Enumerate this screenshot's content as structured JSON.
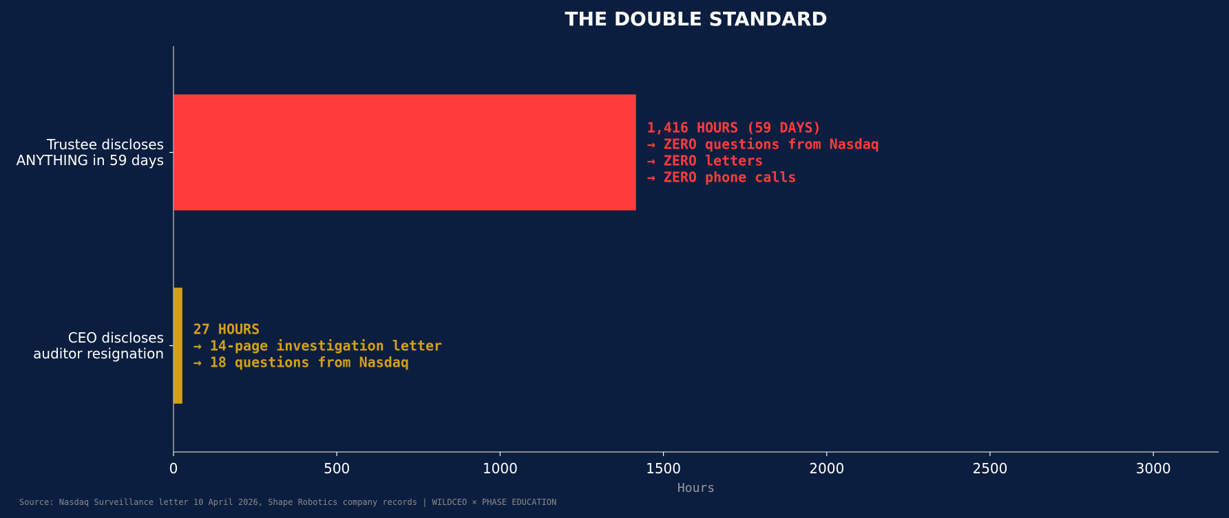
{
  "chart_data": {
    "type": "bar",
    "orientation": "horizontal",
    "title": "THE DOUBLE STANDARD",
    "xlabel": "Hours",
    "ylabel": "",
    "xlim": [
      0,
      3200
    ],
    "xticks": [
      0,
      500,
      1000,
      1500,
      2000,
      2500,
      3000
    ],
    "grid": false,
    "categories": [
      [
        "Trustee discloses",
        "ANYTHING in 59 days"
      ],
      [
        "CEO discloses",
        "auditor resignation"
      ]
    ],
    "values": [
      1416,
      27
    ],
    "colors": [
      "#ff3b3b",
      "#d4a017"
    ],
    "annotations": [
      [
        "1,416 HOURS (59 DAYS)",
        "→ ZERO questions from Nasdaq",
        "→ ZERO letters",
        "→ ZERO phone calls"
      ],
      [
        "27 HOURS",
        "→ 14-page investigation letter",
        "→ 18 questions from Nasdaq"
      ]
    ],
    "source": "Source: Nasdaq Surveillance letter 10 April 2026, Shape Robotics company records | WILDCEO × PHASE EDUCATION"
  }
}
